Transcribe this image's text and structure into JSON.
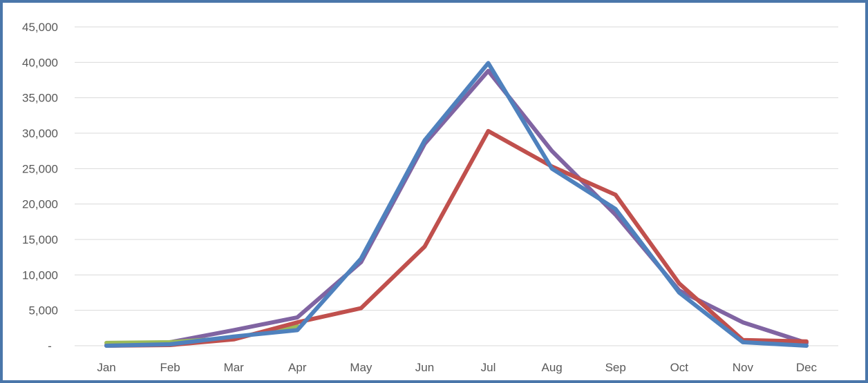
{
  "chart_data": {
    "type": "line",
    "title": "",
    "xlabel": "",
    "ylabel": "",
    "categories": [
      "Jan",
      "Feb",
      "Mar",
      "Apr",
      "May",
      "Jun",
      "Jul",
      "Aug",
      "Sep",
      "Oct",
      "Nov",
      "Dec"
    ],
    "y_ticks": [
      "-",
      "5,000",
      "10,000",
      "15,000",
      "20,000",
      "25,000",
      "30,000",
      "35,000",
      "40,000",
      "45,000"
    ],
    "ylim": [
      0,
      45000
    ],
    "grid": true,
    "legend": "none",
    "series": [
      {
        "color": "#8064a2",
        "values": [
          100,
          500,
          2200,
          4000,
          11800,
          28500,
          38800,
          27500,
          18500,
          7800,
          3300,
          400
        ]
      },
      {
        "color": "#9bbb59",
        "values": [
          400,
          500,
          1100,
          2800,
          null,
          null,
          null,
          null,
          null,
          null,
          null,
          null
        ]
      },
      {
        "color": "#c0504d",
        "values": [
          0,
          100,
          900,
          3300,
          5300,
          14000,
          30300,
          25300,
          21300,
          8800,
          800,
          600
        ]
      },
      {
        "color": "#4f81bd",
        "values": [
          0,
          200,
          1300,
          2200,
          12300,
          29000,
          39900,
          25000,
          19300,
          7500,
          500,
          0
        ]
      }
    ]
  }
}
